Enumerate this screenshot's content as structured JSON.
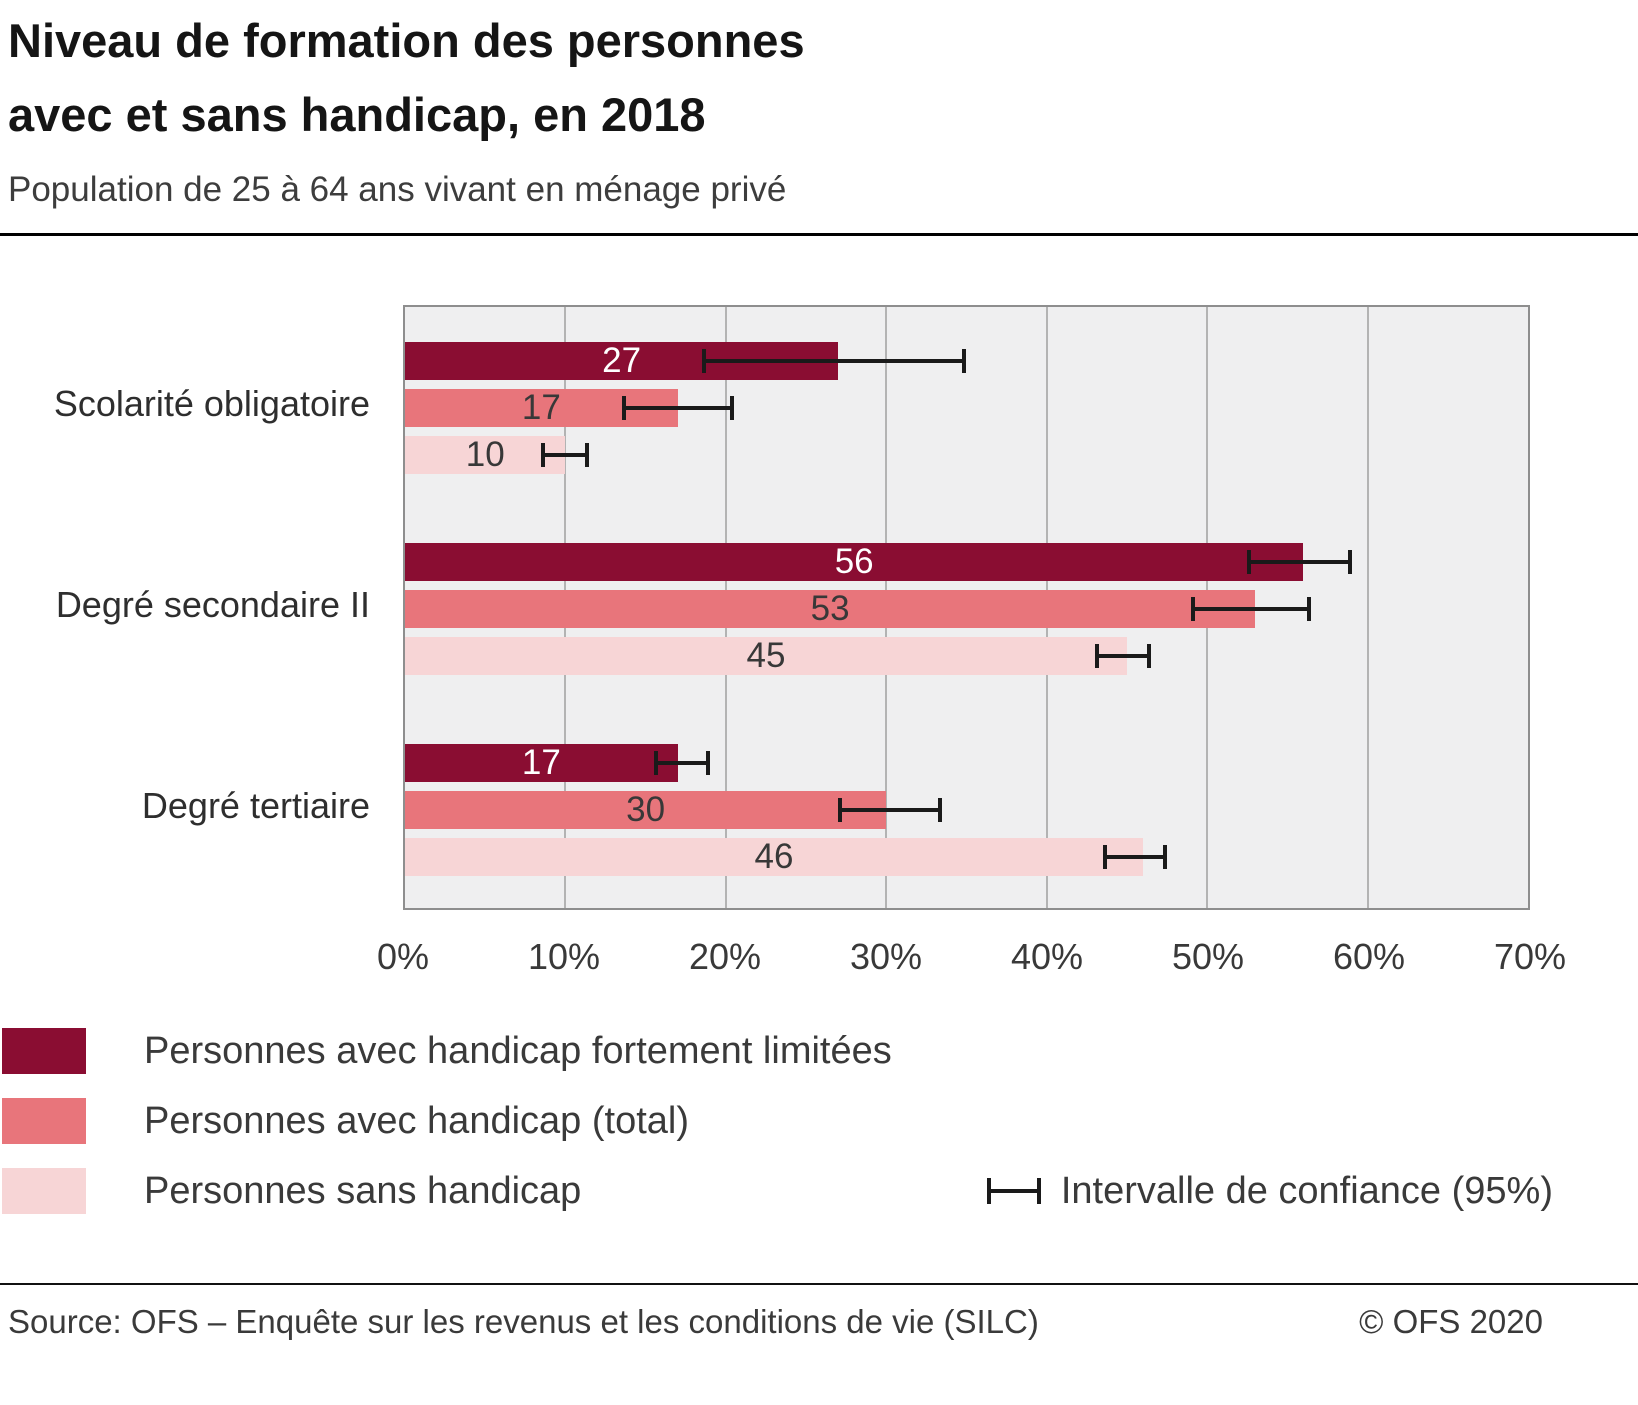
{
  "header": {
    "title_lines": [
      "Niveau de formation des personnes",
      "avec et sans handicap, en 2018"
    ],
    "subtitle": "Population de 25 à 64 ans vivant en ménage privé"
  },
  "chart_data": {
    "type": "bar",
    "orientation": "horizontal",
    "title": "Niveau de formation des personnes avec et sans handicap, en 2018",
    "subtitle": "Population de 25 à 64 ans vivant en ménage privé",
    "categories": [
      "Scolarité obligatoire",
      "Degré secondaire II",
      "Degré tertiaire"
    ],
    "series": [
      {
        "name": "Personnes avec handicap fortement limitées",
        "color": "#8a0d32",
        "label_color": "#ffffff",
        "values": [
          27,
          56,
          17
        ],
        "ci_low": [
          18.5,
          52.5,
          15.5
        ],
        "ci_high": [
          35,
          59,
          19
        ]
      },
      {
        "name": "Personnes avec handicap (total)",
        "color": "#e8757b",
        "label_color": "#383838",
        "values": [
          17,
          53,
          30
        ],
        "ci_low": [
          13.5,
          49,
          27
        ],
        "ci_high": [
          20.5,
          56.5,
          33.5
        ]
      },
      {
        "name": "Personnes sans handicap",
        "color": "#f7d5d6",
        "label_color": "#383838",
        "values": [
          10,
          45,
          46
        ],
        "ci_low": [
          8.5,
          43,
          43.5
        ],
        "ci_high": [
          11.5,
          46.5,
          47.5
        ]
      }
    ],
    "xlim": [
      0,
      70
    ],
    "x_ticks": [
      "0%",
      "10%",
      "20%",
      "30%",
      "40%",
      "50%",
      "60%",
      "70%"
    ],
    "grid": true,
    "legend_position": "bottom-left",
    "ci_label": "Intervalle de confiance (95%)",
    "plot_bg": "#efeff0",
    "errorbar_color": "#1a1a1a"
  },
  "footer": {
    "source": "Source: OFS – Enquête sur les revenus et les conditions de vie (SILC)",
    "copyright": "© OFS 2020"
  }
}
